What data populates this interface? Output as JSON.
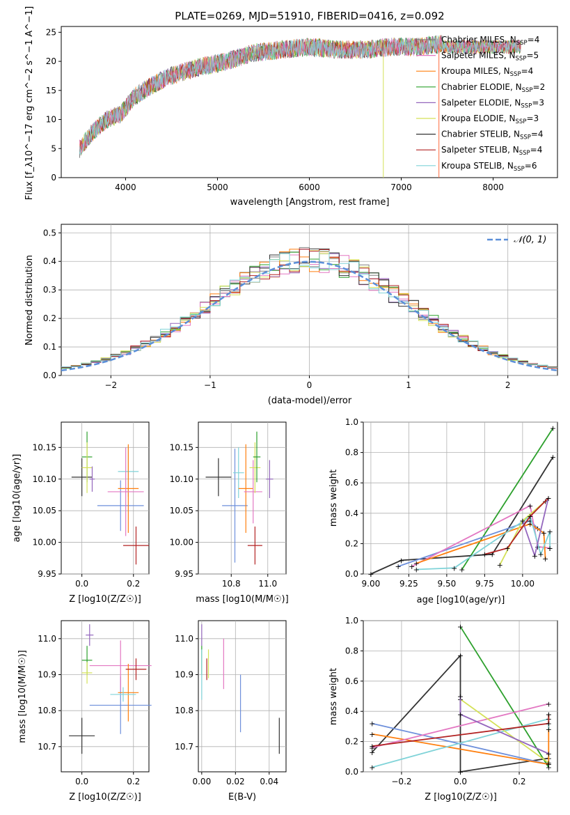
{
  "colors": {
    "Chabrier MILES": "#808080",
    "Salpeter MILES": "#e377c2",
    "Kroupa MILES": "#ff7f0e",
    "Chabrier ELODIE": "#2ca02c",
    "Salpeter ELODIE": "#9467bd",
    "Kroupa ELODIE": "#d4e157",
    "Chabrier STELIB": "#333333",
    "Salpeter STELIB": "#b22222",
    "Kroupa STELIB": "#7fd3d8",
    "norm": "#5b8fd9",
    "MILES_blue": "#6d8fdb"
  },
  "chart_data": [
    {
      "type": "line",
      "title": "PLATE=0269, MJD=51910, FIBERID=0416, z=0.092",
      "xlabel": "wavelength [Angstrom, rest frame]",
      "ylabel": "Flux [f_λ10^−17 erg cm^−2 s^−1 A^−1]",
      "xlim": [
        3300,
        8700
      ],
      "ylim": [
        0,
        26
      ],
      "xticks": [
        "4000",
        "5000",
        "6000",
        "7000",
        "8000"
      ],
      "yticks": [
        "0",
        "5",
        "10",
        "15",
        "20",
        "25"
      ],
      "legend_position": "right",
      "legend": [
        "Chabrier MILES, N_SSP=4",
        "Salpeter MILES, N_SSP=5",
        "Kroupa MILES, N_SSP=4",
        "Chabrier ELODIE, N_SSP=2",
        "Salpeter ELODIE, N_SSP=3",
        "Kroupa ELODIE, N_SSP=3",
        "Chabrier STELIB, N_SSP=4",
        "Salpeter STELIB, N_SSP=4",
        "Kroupa STELIB, N_SSP=6"
      ],
      "spectrum_envelope": {
        "x": [
          3500,
          3650,
          3800,
          3950,
          4100,
          4300,
          4500,
          4800,
          5100,
          5400,
          5700,
          6000,
          6300,
          6600,
          6900,
          7200,
          7450
        ],
        "y": [
          5,
          8,
          10,
          11,
          14,
          16,
          17.5,
          19,
          20,
          21.5,
          22,
          22.5,
          22,
          22,
          22.5,
          22.5,
          23
        ]
      }
    },
    {
      "type": "line",
      "xlabel": "(data-model)/error",
      "ylabel": "Normed distribution",
      "xlim": [
        -2.5,
        2.5
      ],
      "ylim": [
        0,
        0.53
      ],
      "xticks": [
        "−2",
        "−1",
        "0",
        "1",
        "2"
      ],
      "yticks": [
        "0.0",
        "0.1",
        "0.2",
        "0.3",
        "0.4",
        "0.5"
      ],
      "grid": true,
      "legend": [
        "𝒩(0, 1)"
      ],
      "legend_position": "top-right",
      "series": [
        {
          "name": "𝒩(0, 1)",
          "mean": 0,
          "sigma": 1
        }
      ]
    },
    {
      "type": "scatter",
      "xlabel": "Z [log10(Z/Z☉)]",
      "ylabel": "age  [log10(age/yr)]",
      "xlim": [
        -0.08,
        0.26
      ],
      "ylim": [
        9.95,
        10.19
      ],
      "xticks": [
        "0.0",
        "0.2"
      ],
      "yticks": [
        "9.95",
        "10.00",
        "10.05",
        "10.10",
        "10.15"
      ],
      "grid": true
    },
    {
      "type": "scatter",
      "xlabel": "mass [log10(M/M☉)]",
      "xlim": [
        10.62,
        11.1
      ],
      "ylim": [
        9.95,
        10.19
      ],
      "xticks": [
        "10.8",
        "11.0"
      ],
      "yticks": [
        "9.95",
        "10.00",
        "10.05",
        "10.10",
        "10.15"
      ],
      "grid": true
    },
    {
      "type": "line",
      "xlabel": "age  [log10(age/yr)]",
      "ylabel": "mass weight",
      "xlim": [
        8.95,
        10.23
      ],
      "ylim": [
        0,
        1.0
      ],
      "xticks": [
        "9.00",
        "9.25",
        "9.50",
        "9.75",
        "10.00"
      ],
      "yticks": [
        "0.0",
        "0.2",
        "0.4",
        "0.6",
        "0.8",
        "1.0"
      ],
      "grid": true
    },
    {
      "type": "scatter",
      "xlabel": "Z [log10(Z/Z☉)]",
      "ylabel": "mass [log10(M/M☉)]",
      "xlim": [
        -0.08,
        0.26
      ],
      "ylim": [
        10.63,
        11.05
      ],
      "xticks": [
        "0.0",
        "0.2"
      ],
      "yticks": [
        "10.7",
        "10.8",
        "10.9",
        "11.0"
      ],
      "grid": true
    },
    {
      "type": "scatter",
      "xlabel": "E(B-V)",
      "xlim": [
        -0.002,
        0.05
      ],
      "ylim": [
        10.63,
        11.05
      ],
      "xticks": [
        "0.00",
        "0.02",
        "0.04"
      ],
      "yticks": [
        "10.7",
        "10.8",
        "10.9",
        "11.0"
      ],
      "grid": true
    },
    {
      "type": "line",
      "xlabel": "Z [log10(Z/Z☉)]",
      "ylabel": "mass weight",
      "xlim": [
        -0.33,
        0.33
      ],
      "ylim": [
        0,
        1.0
      ],
      "xticks": [
        "−0.2",
        "0.0",
        "0.2"
      ],
      "yticks": [
        "0.0",
        "0.2",
        "0.4",
        "0.6",
        "0.8",
        "1.0"
      ],
      "grid": true
    }
  ]
}
